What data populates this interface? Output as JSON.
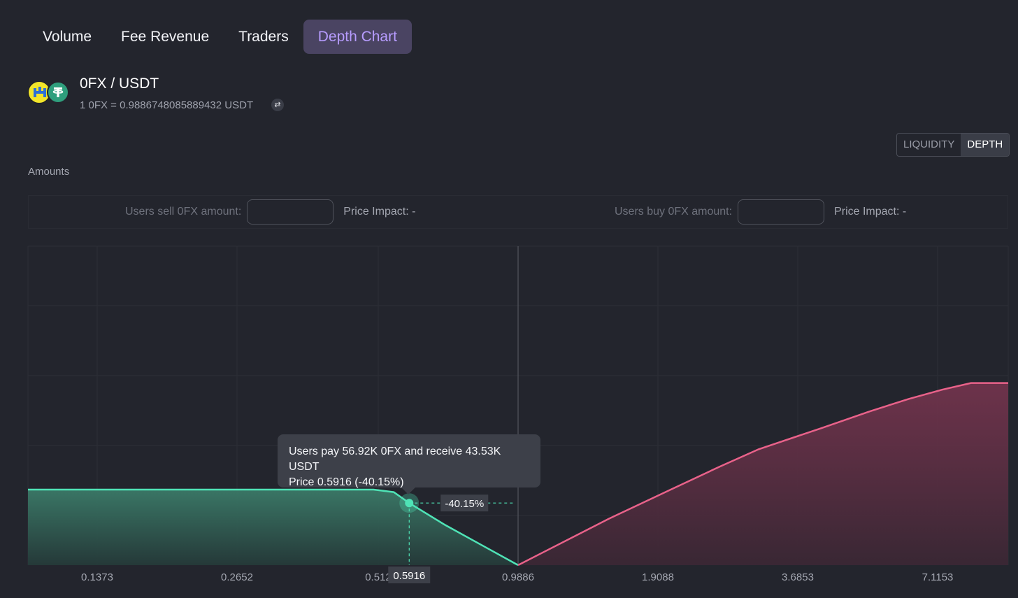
{
  "tabs": [
    {
      "label": "Volume"
    },
    {
      "label": "Fee Revenue"
    },
    {
      "label": "Traders"
    },
    {
      "label": "Depth Chart",
      "active": true
    }
  ],
  "pair": {
    "title": "0FX / USDT",
    "rate": "1 0FX = 0.9886748085889432 USDT",
    "token_a_icon": "0fx-token-icon",
    "token_b_icon": "usdt-token-icon",
    "swap_icon": "swap-arrows-icon"
  },
  "view_toggle": {
    "liquidity": "LIQUIDITY",
    "depth": "DEPTH",
    "selected": "DEPTH"
  },
  "amounts_label": "Amounts",
  "sell": {
    "label": "Users sell 0FX amount:",
    "value": "",
    "impact": "Price Impact: -"
  },
  "buy": {
    "label": "Users buy 0FX amount:",
    "value": "",
    "impact": "Price Impact: -"
  },
  "tooltip": {
    "line1": "Users pay 56.92K 0FX and receive 43.53K USDT",
    "line2": "Price 0.5916 (-40.15%)"
  },
  "colors": {
    "bid": "#4fe3b6",
    "ask": "#e9628a",
    "tab_active_bg": "#4a4462",
    "tab_active_text": "#b79cff"
  },
  "chart_data": {
    "type": "area",
    "x_scale": "log",
    "current_price": 0.9886,
    "x_ticks": [
      "0.1373",
      "0.2652",
      "0.512",
      "0.9886",
      "1.9088",
      "3.6853",
      "7.1153"
    ],
    "bid_series": {
      "name": "",
      "x": [
        0.098,
        0.15,
        0.2,
        0.3,
        0.4,
        0.5,
        0.55,
        0.5916,
        0.7,
        0.85,
        0.9886
      ],
      "y": [
        0.9,
        0.9,
        0.9,
        0.9,
        0.9,
        0.9,
        0.87,
        0.74,
        0.48,
        0.21,
        0.0
      ]
    },
    "ask_series": {
      "name": "",
      "x": [
        0.9886,
        1.5,
        2.0,
        2.5,
        3.0,
        4.0,
        5.0,
        6.0,
        7.0,
        8.0,
        9.5
      ],
      "y": [
        0.0,
        0.55,
        0.9,
        1.17,
        1.38,
        1.63,
        1.83,
        1.98,
        2.09,
        2.17,
        2.17
      ]
    },
    "y_max": 3.8,
    "hover": {
      "x": 0.5916,
      "x_label": "0.5916",
      "impact_label": "-40.15%"
    }
  }
}
